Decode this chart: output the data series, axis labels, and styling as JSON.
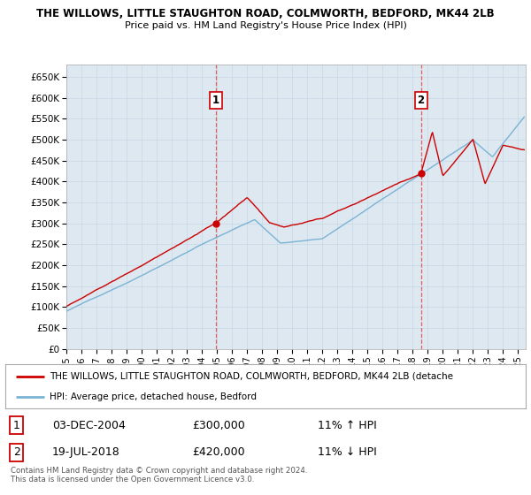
{
  "title": "THE WILLOWS, LITTLE STAUGHTON ROAD, COLMWORTH, BEDFORD, MK44 2LB",
  "subtitle": "Price paid vs. HM Land Registry's House Price Index (HPI)",
  "ylabel_ticks": [
    "£0",
    "£50K",
    "£100K",
    "£150K",
    "£200K",
    "£250K",
    "£300K",
    "£350K",
    "£400K",
    "£450K",
    "£500K",
    "£550K",
    "£600K",
    "£650K"
  ],
  "ytick_values": [
    0,
    50000,
    100000,
    150000,
    200000,
    250000,
    300000,
    350000,
    400000,
    450000,
    500000,
    550000,
    600000,
    650000
  ],
  "ylim": [
    0,
    680000
  ],
  "xlim_start": 1995.0,
  "xlim_end": 2025.5,
  "sale1_date": 2004.92,
  "sale1_price": 300000,
  "sale1_label": "1",
  "sale2_date": 2018.54,
  "sale2_price": 420000,
  "sale2_label": "2",
  "red_color": "#cc0000",
  "blue_color": "#7ab3d4",
  "dashed_color": "#e06060",
  "plot_bg": "#dde8f0",
  "legend_line1": "THE WILLOWS, LITTLE STAUGHTON ROAD, COLMWORTH, BEDFORD, MK44 2LB (detache",
  "legend_line2": "HPI: Average price, detached house, Bedford",
  "table_row1": [
    "1",
    "03-DEC-2004",
    "£300,000",
    "11% ↑ HPI"
  ],
  "table_row2": [
    "2",
    "19-JUL-2018",
    "£420,000",
    "11% ↓ HPI"
  ],
  "footnote": "Contains HM Land Registry data © Crown copyright and database right 2024.\nThis data is licensed under the Open Government Licence v3.0.",
  "xtick_years": [
    1995,
    1996,
    1997,
    1998,
    1999,
    2000,
    2001,
    2002,
    2003,
    2004,
    2005,
    2006,
    2007,
    2008,
    2009,
    2010,
    2011,
    2012,
    2013,
    2014,
    2015,
    2016,
    2017,
    2018,
    2019,
    2020,
    2021,
    2022,
    2023,
    2024,
    2025
  ]
}
